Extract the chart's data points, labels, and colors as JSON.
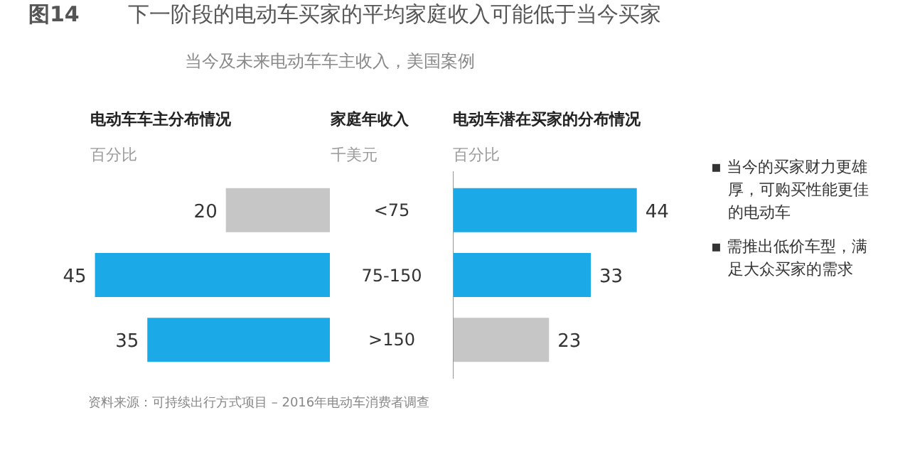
{
  "chart_data": [
    {
      "type": "other",
      "title": "下一阶段的电动车买家的平均家庭收入可能低于当今买家",
      "subtitle": "当今及未来电动车车主收入，美国案例",
      "annotations": [
        "图14"
      ]
    },
    {
      "type": "bar",
      "orientation": "horizontal",
      "title": "电动车车主分布情况",
      "subtitle": "百分比",
      "ylabel": "家庭年收入",
      "annotations": [
        "千美元"
      ],
      "categories": [
        "<75",
        "75-150",
        ">150"
      ],
      "values": [
        20,
        45,
        35
      ],
      "colors": [
        "#c6c6c6",
        "#1ba9e8",
        "#1ba9e8"
      ],
      "data_labels": true,
      "tick_labels": false
    },
    {
      "type": "bar",
      "orientation": "horizontal",
      "title": "电动车潜在买家的分布情况",
      "subtitle": "百分比",
      "values": [
        44,
        33,
        23
      ],
      "colors": [
        "#1ba9e8",
        "#1ba9e8",
        "#c6c6c6"
      ],
      "data_labels": true,
      "tick_labels": false
    },
    {
      "type": "other",
      "annotations": [
        "▪ 当今的买家财力更雄厚，可购买性能更佳的电动车",
        "▪ 需推出低价车型，满足大众买家的需求",
        "资料来源：可持续出行方式项目 – 2016年电动车消费者调查"
      ]
    }
  ]
}
